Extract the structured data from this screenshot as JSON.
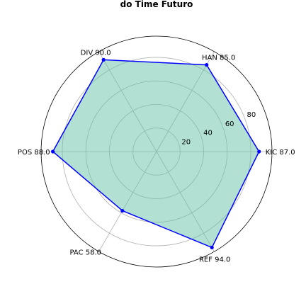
{
  "chart_data": {
    "type": "radar",
    "title": "do Time Futuro",
    "categories": [
      "KIC",
      "HAN",
      "DIV",
      "POS",
      "PAC",
      "REF"
    ],
    "point_labels": [
      "KIC 87.0",
      "HAN 85.0",
      "DIV 90.0",
      "POS 88.0",
      "PAC 58.0",
      "REF 94.0"
    ],
    "values": [
      87.0,
      85.0,
      90.0,
      88.0,
      58.0,
      94.0
    ],
    "angles_deg": [
      0,
      60,
      120,
      180,
      240,
      300
    ],
    "rmax": 98,
    "rticks": [
      20,
      40,
      60,
      80
    ],
    "rtick_labels": [
      "20",
      "40",
      "60",
      "80"
    ],
    "grid": true,
    "colors": {
      "line": "#0000ff",
      "fill": "#66c2a5",
      "fill_alpha": 0.5,
      "grid": "#b0b0b0",
      "frame": "#000000"
    }
  }
}
